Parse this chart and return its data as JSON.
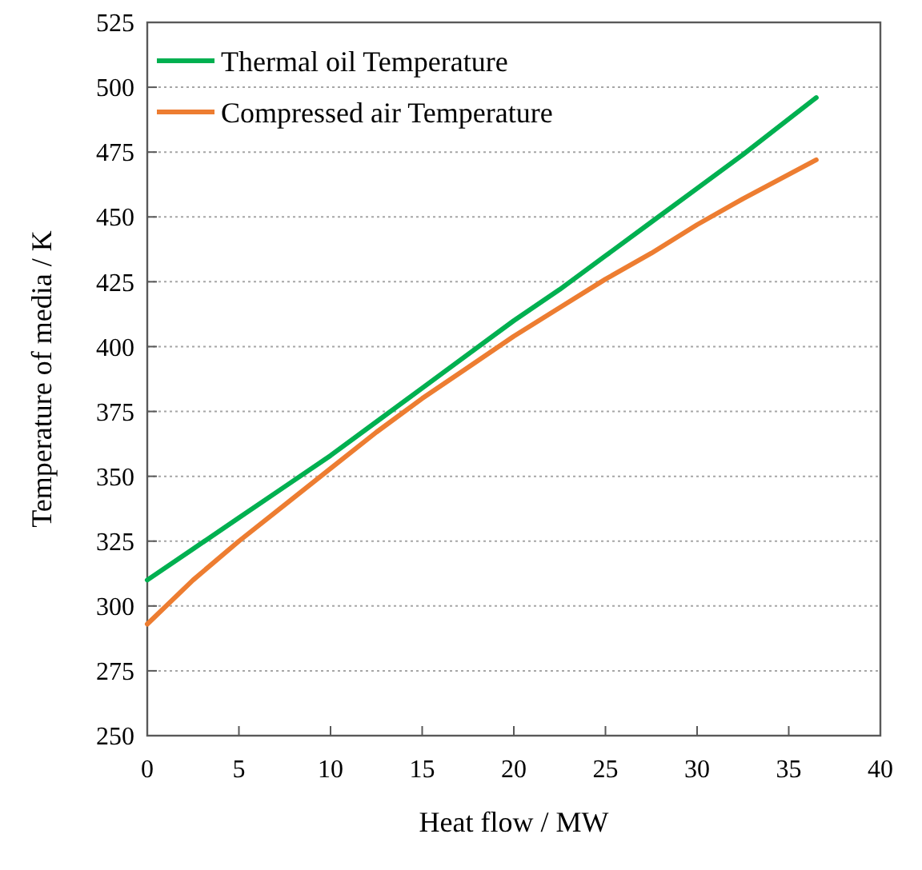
{
  "chart_data": {
    "type": "line",
    "xlabel": "Heat flow / MW",
    "ylabel": "Temperature of media / K",
    "x": [
      0,
      2.5,
      5,
      7.5,
      10,
      12.5,
      15,
      17.5,
      20,
      22.5,
      25,
      27.5,
      30,
      32.5,
      36.5
    ],
    "series": [
      {
        "name": "Thermal oil Temperature",
        "color": "#00b050",
        "values": [
          310,
          322,
          334,
          346,
          358,
          371,
          384,
          397,
          410,
          422,
          435,
          448,
          461,
          474,
          496
        ]
      },
      {
        "name": "Compressed air Temperature",
        "color": "#ed7d31",
        "values": [
          293,
          310,
          325,
          339,
          353,
          367,
          380,
          392,
          404,
          415,
          426,
          436,
          447,
          457,
          472
        ]
      }
    ],
    "xlim": [
      0,
      40
    ],
    "xticks": [
      0,
      5,
      10,
      15,
      20,
      25,
      30,
      35,
      40
    ],
    "ylim": [
      250,
      525
    ],
    "yticks": [
      250,
      275,
      300,
      325,
      350,
      375,
      400,
      425,
      450,
      475,
      500,
      525
    ],
    "grid": "y",
    "legend": "top left",
    "line_style": "solid",
    "marker": "none"
  }
}
